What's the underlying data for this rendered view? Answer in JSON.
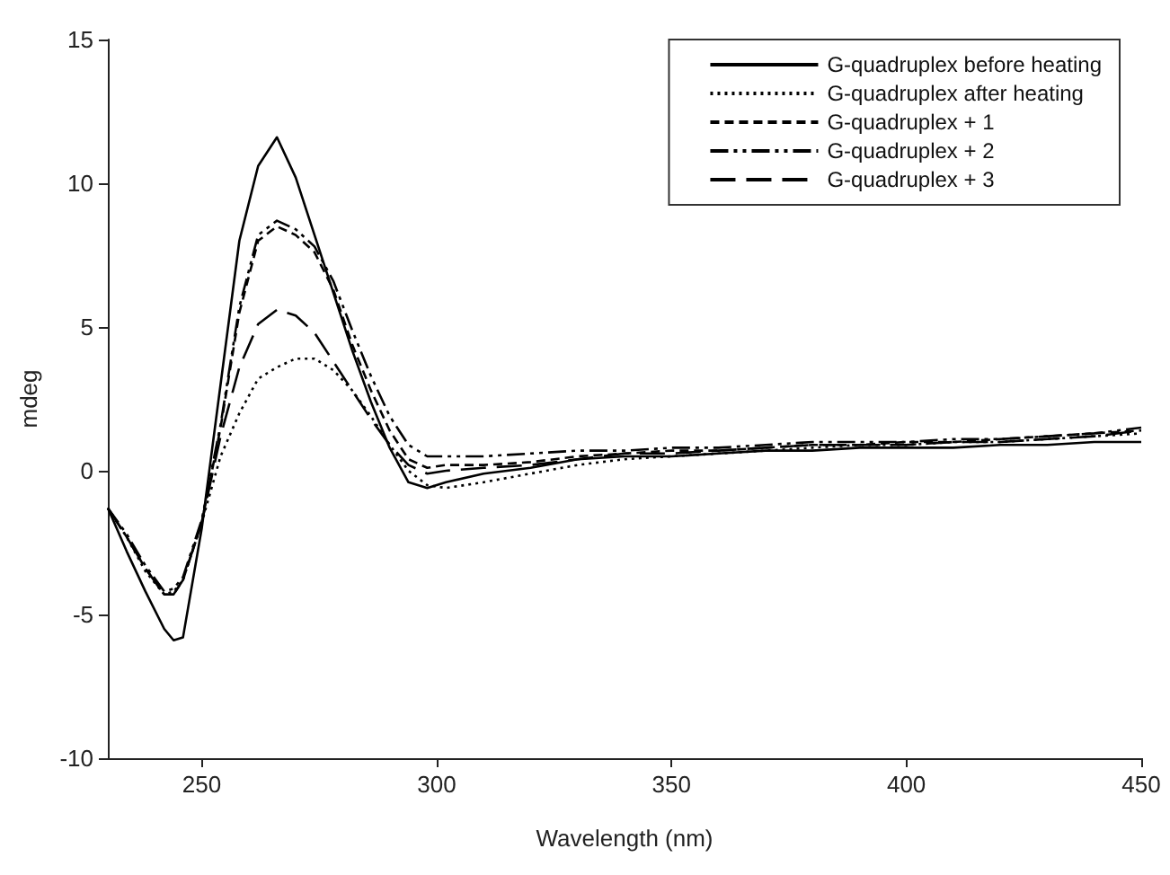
{
  "chart_data": {
    "type": "line",
    "xlabel": "Wavelength (nm)",
    "ylabel": "mdeg",
    "x": [
      230,
      234,
      238,
      242,
      244,
      246,
      250,
      254,
      258,
      262,
      266,
      270,
      274,
      278,
      282,
      286,
      290,
      294,
      298,
      302,
      310,
      320,
      330,
      340,
      350,
      360,
      370,
      380,
      390,
      400,
      410,
      420,
      430,
      440,
      450
    ],
    "series": [
      {
        "name": "G-quadruplex before heating",
        "color": "#000000",
        "line_style": "solid",
        "values": [
          -1.3,
          -2.8,
          -4.2,
          -5.5,
          -5.9,
          -5.8,
          -2.0,
          3.0,
          8.0,
          10.6,
          11.6,
          10.2,
          8.2,
          6.2,
          4.2,
          2.4,
          0.8,
          -0.4,
          -0.6,
          -0.4,
          -0.1,
          0.1,
          0.4,
          0.5,
          0.5,
          0.6,
          0.7,
          0.7,
          0.8,
          0.8,
          0.8,
          0.9,
          0.9,
          1.0,
          1.0
        ]
      },
      {
        "name": "G-quadruplex after heating",
        "color": "#000000",
        "line_style": "dotted",
        "values": [
          -1.3,
          -2.3,
          -3.5,
          -4.3,
          -4.2,
          -3.8,
          -1.8,
          0.5,
          2.0,
          3.2,
          3.6,
          3.9,
          3.9,
          3.5,
          2.8,
          1.9,
          0.9,
          0.0,
          -0.5,
          -0.6,
          -0.4,
          -0.1,
          0.2,
          0.4,
          0.5,
          0.6,
          0.7,
          0.8,
          0.9,
          0.9,
          1.0,
          1.0,
          1.1,
          1.2,
          1.3
        ]
      },
      {
        "name": "G-quadruplex + 1",
        "color": "#000000",
        "line_style": "dashed",
        "values": [
          -1.3,
          -2.3,
          -3.4,
          -4.3,
          -4.3,
          -3.8,
          -1.8,
          1.5,
          5.5,
          8.0,
          8.5,
          8.2,
          7.6,
          6.3,
          4.4,
          2.8,
          1.4,
          0.4,
          0.1,
          0.2,
          0.2,
          0.3,
          0.5,
          0.6,
          0.7,
          0.7,
          0.8,
          0.9,
          0.9,
          1.0,
          1.0,
          1.1,
          1.2,
          1.3,
          1.4
        ]
      },
      {
        "name": "G-quadruplex + 2",
        "color": "#000000",
        "line_style": "dashdot",
        "values": [
          -1.3,
          -2.2,
          -3.3,
          -4.2,
          -4.1,
          -3.7,
          -1.7,
          1.6,
          5.7,
          8.2,
          8.7,
          8.4,
          7.8,
          6.6,
          4.9,
          3.3,
          1.9,
          0.9,
          0.5,
          0.5,
          0.5,
          0.6,
          0.7,
          0.7,
          0.8,
          0.8,
          0.9,
          1.0,
          1.0,
          1.0,
          1.1,
          1.1,
          1.2,
          1.3,
          1.5
        ]
      },
      {
        "name": "G-quadruplex + 3",
        "color": "#000000",
        "line_style": "longdash",
        "values": [
          -1.3,
          -2.3,
          -3.4,
          -4.3,
          -4.3,
          -3.8,
          -1.8,
          1.2,
          3.6,
          5.1,
          5.6,
          5.4,
          4.8,
          3.8,
          2.8,
          1.8,
          0.9,
          0.2,
          -0.1,
          0.0,
          0.1,
          0.2,
          0.4,
          0.6,
          0.6,
          0.7,
          0.8,
          0.9,
          0.9,
          0.9,
          1.0,
          1.0,
          1.1,
          1.2,
          1.4
        ]
      }
    ],
    "xlim": [
      230,
      450
    ],
    "xticks": [
      250,
      300,
      350,
      400,
      450
    ],
    "ylim": [
      -10,
      15
    ],
    "yticks": [
      -10,
      -5,
      0,
      5,
      10,
      15
    ],
    "grid": false,
    "legend": "top right",
    "marker": "none"
  }
}
